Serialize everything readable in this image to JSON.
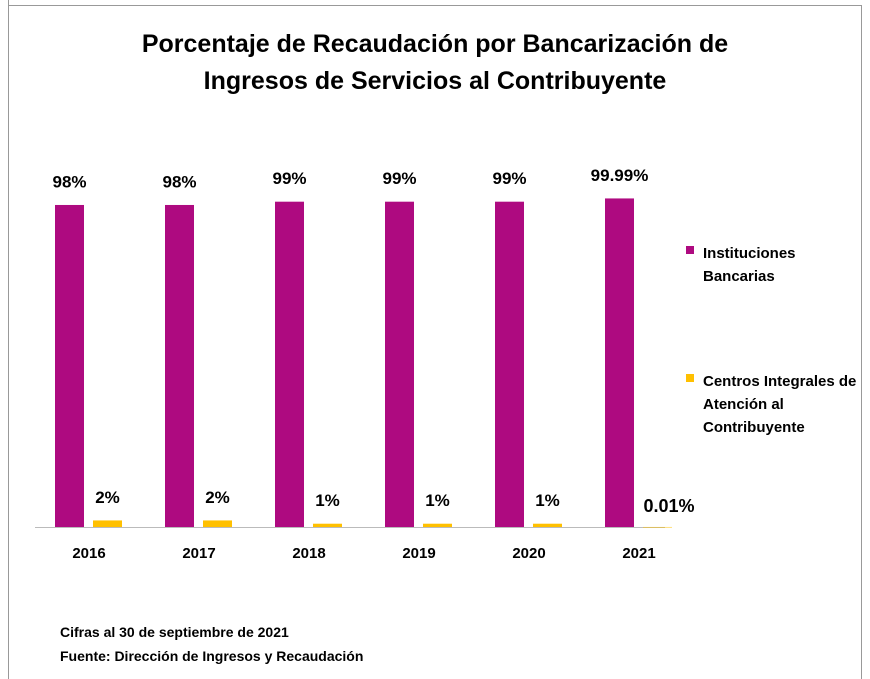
{
  "chart_data": {
    "type": "bar",
    "title": "Porcentaje de Recaudación por Bancarización de Ingresos de Servicios al Contribuyente",
    "categories": [
      "2016",
      "2017",
      "2018",
      "2019",
      "2020",
      "2021"
    ],
    "series": [
      {
        "name": "Instituciones Bancarias",
        "color": "#ae0a80",
        "values": [
          98,
          98,
          99,
          99,
          99,
          99.99
        ],
        "value_labels": [
          "98%",
          "98%",
          "99%",
          "99%",
          "99%",
          "99.99%"
        ]
      },
      {
        "name": "Centros Integrales de Atención al Contribuyente",
        "color": "#ffc000",
        "values": [
          2,
          2,
          1,
          1,
          1,
          0.01
        ],
        "value_labels": [
          "2%",
          "2%",
          "1%",
          "1%",
          "1%",
          "0.01%"
        ]
      }
    ],
    "ylim": [
      0,
      100
    ],
    "legend": "right",
    "notes": [
      "Cifras al 30 de septiembre de 2021",
      "Fuente: Dirección de Ingresos y Recaudación"
    ]
  }
}
